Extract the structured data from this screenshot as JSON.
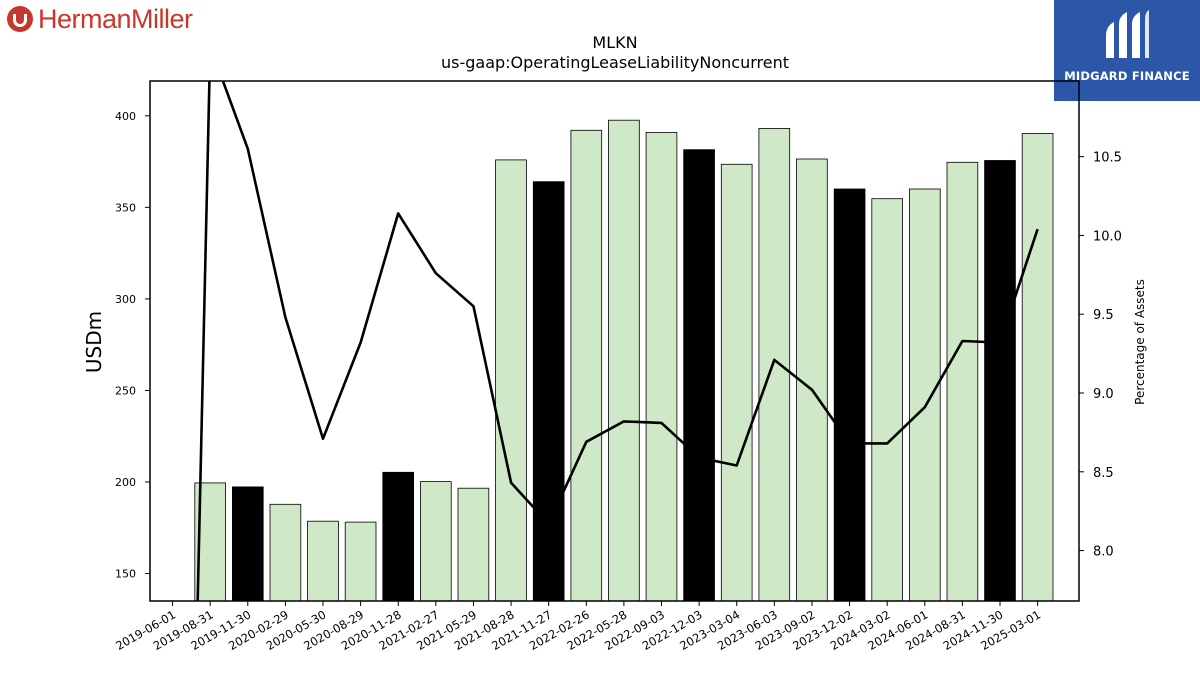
{
  "branding": {
    "company_logo_text": "HermanMiller",
    "partner_logo_text": "MIDGARD FINANCE"
  },
  "colors": {
    "bar_fill": "#cfe8c8",
    "bar_fill_highlight": "#000000",
    "line": "#000000",
    "brand_red": "#c8372d",
    "partner_blue": "#2c57a8"
  },
  "chart_data": {
    "type": "bar",
    "title": "MLKN",
    "subtitle": "us-gaap:OperatingLeaseLiabilityNoncurrent",
    "ylabel": "USDm",
    "y2label": "Percentage of Assets",
    "ylim": [
      135,
      419
    ],
    "y2lim": [
      7.68,
      10.98
    ],
    "yticks": [
      150,
      200,
      250,
      300,
      350,
      400
    ],
    "y2ticks": [
      "8.0",
      "8.5",
      "9.0",
      "9.5",
      "10.0",
      "10.5"
    ],
    "categories": [
      "2019-06-01",
      "2019-08-31",
      "2019-11-30",
      "2020-02-29",
      "2020-05-30",
      "2020-08-29",
      "2020-11-28",
      "2021-02-27",
      "2021-05-29",
      "2021-08-28",
      "2021-11-27",
      "2022-02-26",
      "2022-05-28",
      "2022-09-03",
      "2022-12-03",
      "2023-03-04",
      "2023-06-03",
      "2023-09-02",
      "2023-12-02",
      "2024-03-02",
      "2024-06-01",
      "2024-08-31",
      "2024-11-30",
      "2025-03-01"
    ],
    "series": [
      {
        "values": [
          null,
          199.5,
          197.3,
          187.8,
          178.6,
          178.1,
          205.3,
          200.2,
          196.6,
          375.9,
          364.0,
          392.1,
          397.6,
          390.9,
          381.5,
          373.5,
          393.1,
          376.4,
          360.0,
          354.7,
          360.0,
          374.6,
          375.6,
          390.3
        ],
        "highlight": [
          false,
          false,
          true,
          false,
          false,
          false,
          true,
          false,
          false,
          false,
          true,
          false,
          false,
          false,
          true,
          false,
          false,
          false,
          true,
          false,
          false,
          false,
          true,
          false
        ]
      },
      {
        "axis": "right",
        "values": [
          null,
          11.2,
          10.55,
          9.48,
          8.71,
          9.32,
          10.14,
          9.76,
          9.55,
          8.43,
          8.17,
          8.69,
          8.82,
          8.81,
          8.59,
          8.54,
          9.21,
          9.02,
          8.68,
          8.68,
          8.91,
          9.33,
          9.32,
          10.04
        ]
      }
    ],
    "grid": false,
    "legend": "none"
  }
}
